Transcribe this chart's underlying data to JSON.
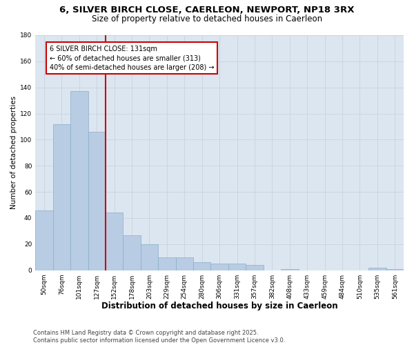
{
  "title": "6, SILVER BIRCH CLOSE, CAERLEON, NEWPORT, NP18 3RX",
  "subtitle": "Size of property relative to detached houses in Caerleon",
  "xlabel": "Distribution of detached houses by size in Caerleon",
  "ylabel": "Number of detached properties",
  "categories": [
    "50sqm",
    "76sqm",
    "101sqm",
    "127sqm",
    "152sqm",
    "178sqm",
    "203sqm",
    "229sqm",
    "254sqm",
    "280sqm",
    "306sqm",
    "331sqm",
    "357sqm",
    "382sqm",
    "408sqm",
    "433sqm",
    "459sqm",
    "484sqm",
    "510sqm",
    "535sqm",
    "561sqm"
  ],
  "values": [
    46,
    112,
    137,
    106,
    44,
    27,
    20,
    10,
    10,
    6,
    5,
    5,
    4,
    0,
    1,
    0,
    0,
    0,
    0,
    2,
    1
  ],
  "bar_color": "#b8cce4",
  "bar_edge_color": "#8aaec8",
  "vline_x_index": 3,
  "vline_color": "#cc0000",
  "annotation_line1": "6 SILVER BIRCH CLOSE: 131sqm",
  "annotation_line2": "← 60% of detached houses are smaller (313)",
  "annotation_line3": "40% of semi-detached houses are larger (208) →",
  "annotation_box_color": "#cc0000",
  "annotation_box_bg": "#ffffff",
  "ylim": [
    0,
    180
  ],
  "yticks": [
    0,
    20,
    40,
    60,
    80,
    100,
    120,
    140,
    160,
    180
  ],
  "grid_color": "#ccd4e0",
  "bg_color": "#dce6f0",
  "footer": "Contains HM Land Registry data © Crown copyright and database right 2025.\nContains public sector information licensed under the Open Government Licence v3.0.",
  "title_fontsize": 9.5,
  "subtitle_fontsize": 8.5,
  "xlabel_fontsize": 8.5,
  "ylabel_fontsize": 7.5,
  "tick_fontsize": 6.5,
  "annotation_fontsize": 7,
  "footer_fontsize": 6
}
